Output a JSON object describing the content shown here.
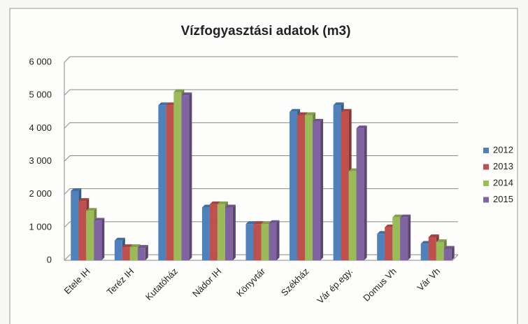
{
  "chart_data": {
    "type": "bar",
    "title": "Vízfogyasztási adatok (m3)",
    "categories": [
      "Etele IH",
      "Teréz IH",
      "Kutatóház",
      "Nádor IH",
      "Könyvtár",
      "Székház",
      "Vár ép.egy.",
      "Domus Vh",
      "Vár Vh"
    ],
    "series": [
      {
        "name": "2012",
        "color": "#4f81bd",
        "values": [
          2100,
          600,
          4700,
          1600,
          1100,
          4500,
          4700,
          800,
          500
        ]
      },
      {
        "name": "2013",
        "color": "#c0504d",
        "values": [
          1800,
          400,
          4700,
          1700,
          1100,
          4400,
          4500,
          1000,
          700
        ]
      },
      {
        "name": "2014",
        "color": "#9bbb59",
        "values": [
          1500,
          400,
          5100,
          1700,
          1100,
          4400,
          2700,
          1300,
          550
        ]
      },
      {
        "name": "2015",
        "color": "#8064a2",
        "values": [
          1200,
          380,
          5000,
          1600,
          1130,
          4200,
          4000,
          1300,
          350
        ]
      }
    ],
    "ylim": [
      0,
      6000
    ],
    "yticks": [
      0,
      {
        "value": 1000,
        "label": "1 000"
      },
      {
        "value": 2000,
        "label": "2 000"
      },
      {
        "value": 3000,
        "label": "3 000"
      },
      {
        "value": 4000,
        "label": "4 000"
      },
      {
        "value": 5000,
        "label": "5 000"
      },
      {
        "value": 6000,
        "label": "6 000"
      }
    ],
    "grid": true,
    "legend": "right"
  }
}
